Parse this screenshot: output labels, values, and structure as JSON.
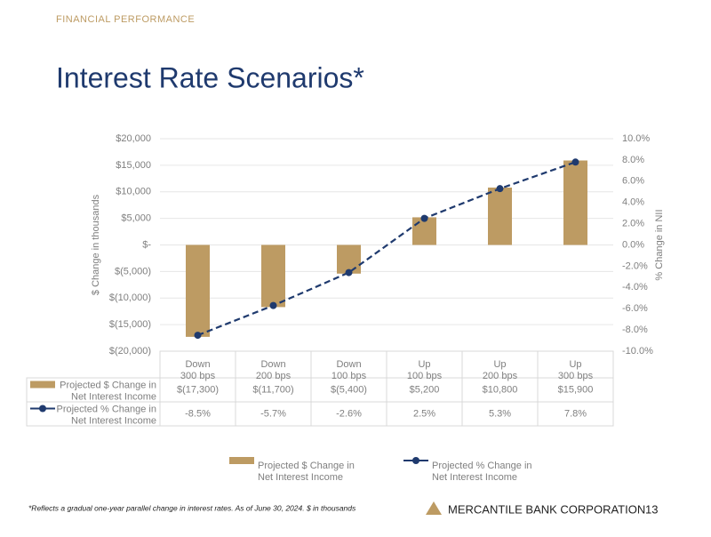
{
  "header": {
    "section": "FINANCIAL PERFORMANCE",
    "title": "Interest Rate Scenarios*"
  },
  "chart_data": {
    "type": "combo",
    "categories": [
      "Down 300 bps",
      "Down 200 bps",
      "Down 100 bps",
      "Up 100 bps",
      "Up 200 bps",
      "Up 300 bps"
    ],
    "series": [
      {
        "name": "Projected $ Change in Net Interest Income",
        "type": "bar",
        "color": "#bd9b63",
        "values": [
          -17300,
          -11700,
          -5400,
          5200,
          10800,
          15900
        ],
        "value_labels": [
          "$(17,300)",
          "$(11,700)",
          "$(5,400)",
          "$5,200",
          "$10,800",
          "$15,900"
        ]
      },
      {
        "name": "Projected % Change in Net Interest Income",
        "type": "line",
        "axis": "y2",
        "color": "#1f3a6e",
        "values": [
          -8.5,
          -5.7,
          -2.6,
          2.5,
          5.3,
          7.8
        ],
        "value_labels": [
          "-8.5%",
          "-5.7%",
          "-2.6%",
          "2.5%",
          "5.3%",
          "7.8%"
        ]
      }
    ],
    "y_label": "$ Change  in thousands",
    "y2_label": "% Change in NII",
    "ylim": [
      -20000,
      20000
    ],
    "yticks": [
      {
        "value": -20000,
        "label": "$(20,000)"
      },
      {
        "value": -15000,
        "label": "$(15,000)"
      },
      {
        "value": -10000,
        "label": "$(10,000)"
      },
      {
        "value": -5000,
        "label": "$(5,000)"
      },
      {
        "value": 0,
        "label": "$-"
      },
      {
        "value": 5000,
        "label": "$5,000"
      },
      {
        "value": 10000,
        "label": "$10,000"
      },
      {
        "value": 15000,
        "label": "$15,000"
      },
      {
        "value": 20000,
        "label": "$20,000"
      }
    ],
    "y2lim": [
      -10,
      10
    ],
    "y2ticks": [
      {
        "value": -10,
        "label": "-10.0%"
      },
      {
        "value": -8,
        "label": "-8.0%"
      },
      {
        "value": -6,
        "label": "-6.0%"
      },
      {
        "value": -4,
        "label": "-4.0%"
      },
      {
        "value": -2,
        "label": "-2.0%"
      },
      {
        "value": 0,
        "label": "0.0%"
      },
      {
        "value": 2,
        "label": "2.0%"
      },
      {
        "value": 4,
        "label": "4.0%"
      },
      {
        "value": 6,
        "label": "6.0%"
      },
      {
        "value": 8,
        "label": "8.0%"
      },
      {
        "value": 10,
        "label": "10.0%"
      }
    ],
    "grid": true,
    "legend": "bottom"
  },
  "footer": {
    "note": "*Reflects a gradual one-year parallel change in interest rates. As of June 30, 2024. $ in thousands",
    "company": "MERCANTILE BANK CORPORATION",
    "page": "13"
  }
}
